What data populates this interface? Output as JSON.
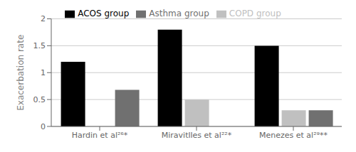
{
  "chart_data": {
    "type": "bar",
    "categories": [
      "Hardin et al²⁶*",
      "Miravitlles et al²²*",
      "Menezes et al²⁹**"
    ],
    "series": [
      {
        "name": "ACOS group",
        "color": "#000000",
        "values": [
          1.2,
          1.8,
          1.5
        ]
      },
      {
        "name": "COPD group",
        "color": "#c0c0c0",
        "values": [
          0.0,
          0.5,
          0.3
        ]
      },
      {
        "name": "Asthma group",
        "color": "#707070",
        "values": [
          0.68,
          0.0,
          0.3
        ]
      }
    ],
    "ylabel": "Exacerbation rate",
    "ylim": [
      0,
      2
    ],
    "yticks": [
      0,
      0.5,
      1,
      1.5,
      2
    ],
    "grid": true,
    "legend": "top"
  }
}
